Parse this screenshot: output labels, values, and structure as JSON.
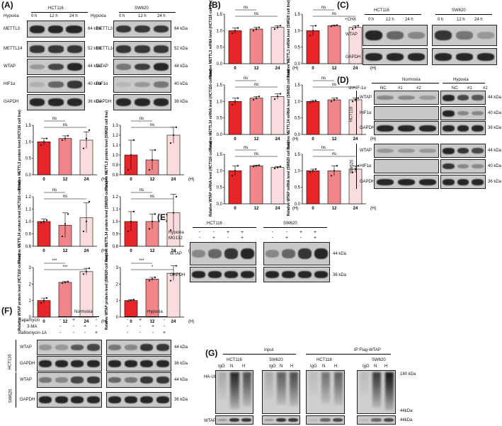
{
  "panels": {
    "A": "(A)",
    "B": "(B)",
    "C": "(C)",
    "D": "(D)",
    "E": "(E)",
    "F": "(F)",
    "G": "(G)"
  },
  "common": {
    "hypoxia": "Hypoxia",
    "h0": "0 h",
    "h12": "12 h",
    "h24": "24 h",
    "hct": "HCT116",
    "sw": "SW620",
    "ns": "ns",
    "unit": "(H)",
    "star1": "*",
    "star3": "***",
    "kda64": "64 kDa",
    "kda52": "52 kDa",
    "kda44": "44 kDa",
    "kda40": "40 kDa",
    "kda36": "36 kDa",
    "kda180": "180 kDa",
    "kda44b": "44kDa",
    "mettl3": "METTL3",
    "mettl14": "METTL14",
    "wtap": "WTAP",
    "hif": "HIF1α",
    "gapdh": "GAPDH"
  },
  "C": {
    "chx": "+CHX"
  },
  "D": {
    "sh": "shHIF-1α",
    "normoxia": "Normoxia",
    "hypoxiaLab": "Hypoxia",
    "nc": "NC",
    "s1": "#1",
    "s2": "#2"
  },
  "E": {
    "hyp": "Hypoxia",
    "mg": "MG132",
    "signs_hyp": [
      "-",
      "-",
      "+",
      "+",
      "-",
      "-",
      "+",
      "+"
    ],
    "signs_mg": [
      "-",
      "+",
      "-",
      "+",
      "-",
      "+",
      "-",
      "+"
    ]
  },
  "F": {
    "rapa": "Rapamycin",
    "ma": "3-MA",
    "baf": "Bafilomycin-1A",
    "normoxia": "Normoxia",
    "hypoxiaLab": "Hypoxia",
    "r_rapa": [
      "-",
      "+",
      "-",
      "-",
      "-",
      "+",
      "-",
      "-"
    ],
    "r_ma": [
      "-",
      "-",
      "+",
      "-",
      "-",
      "-",
      "+",
      "-"
    ],
    "r_baf": [
      "-",
      "-",
      "-",
      "+",
      "-",
      "-",
      "-",
      "+"
    ]
  },
  "G": {
    "input": "Input",
    "ip": "IP:Flag-WTAP",
    "haub": "HA-Ub",
    "igg": "IgG",
    "n": "N",
    "h": "H"
  },
  "chart_data": [
    {
      "id": "A-METTL3-HCT116",
      "type": "bar",
      "categories": [
        "0",
        "12",
        "24"
      ],
      "values": [
        1.0,
        1.1,
        1.05
      ],
      "err": [
        0.1,
        0.08,
        0.25
      ],
      "ylabel": "Relative METTL3 protein level (HCT116 cell line)",
      "ylim": [
        0,
        1.5
      ],
      "ticks": [
        "0.0",
        "0.5",
        "1.0",
        "1.5"
      ],
      "sig": [
        [
          "ns",
          0,
          1
        ],
        [
          "ns",
          0,
          2
        ]
      ],
      "pts": [
        [
          0.9,
          1.0,
          1.1
        ],
        [
          1.05,
          1.1,
          1.18
        ],
        [
          0.8,
          1.1,
          1.35
        ]
      ]
    },
    {
      "id": "A-METTL3-SW620",
      "type": "bar",
      "categories": [
        "0",
        "12",
        "24"
      ],
      "values": [
        1.0,
        0.95,
        1.2
      ],
      "err": [
        0.15,
        0.1,
        0.08
      ],
      "ylabel": "Relative METTL3 protein level (SW620 cell line)",
      "ylim": [
        0.8,
        1.3
      ],
      "ticks": [
        "0.8",
        "0.9",
        "1.0",
        "1.1",
        "1.2",
        "1.3"
      ],
      "sig": [
        [
          "ns",
          0,
          1
        ],
        [
          "ns",
          0,
          2
        ]
      ],
      "pts": [
        [
          0.85,
          1.0,
          1.15
        ],
        [
          0.85,
          0.95,
          1.05
        ],
        [
          1.12,
          1.2,
          1.28
        ]
      ]
    },
    {
      "id": "A-METTL14-HCT116",
      "type": "bar",
      "categories": [
        "0",
        "12",
        "24"
      ],
      "values": [
        1.0,
        0.97,
        1.03
      ],
      "err": [
        0.02,
        0.1,
        0.12
      ],
      "ylabel": "Relative METTL14 protein level (HCT116 cell line)",
      "ylim": [
        0.8,
        1.2
      ],
      "ticks": [
        "0.8",
        "0.9",
        "1.0",
        "1.1",
        "1.2"
      ],
      "sig": [
        [
          "ns",
          0,
          1
        ],
        [
          "ns",
          0,
          2
        ]
      ],
      "pts": [
        [
          0.99,
          1.0,
          1.01
        ],
        [
          0.88,
          0.98,
          1.06
        ],
        [
          0.92,
          1.0,
          1.16
        ]
      ]
    },
    {
      "id": "A-METTL14-SW620",
      "type": "bar",
      "categories": [
        "0",
        "12",
        "24"
      ],
      "values": [
        1.0,
        1.0,
        1.07
      ],
      "err": [
        0.08,
        0.06,
        0.15
      ],
      "ylabel": "Relative METTL14 protein level (SW620 cell line)",
      "ylim": [
        0.8,
        1.2
      ],
      "ticks": [
        "0.8",
        "0.9",
        "1.0",
        "1.1",
        "1.2"
      ],
      "sig": [
        [
          "ns",
          0,
          1
        ],
        [
          "ns",
          0,
          2
        ]
      ],
      "pts": [
        [
          0.92,
          1.0,
          1.08
        ],
        [
          0.94,
          1.0,
          1.06
        ],
        [
          0.93,
          1.07,
          1.2
        ]
      ]
    },
    {
      "id": "A-WTAP-HCT116",
      "type": "bar",
      "categories": [
        "0",
        "12",
        "24"
      ],
      "values": [
        1.0,
        2.1,
        2.75
      ],
      "err": [
        0.15,
        0.05,
        0.2
      ],
      "ylabel": "Relative WTAP protein level (HCT116 cell line)",
      "ylim": [
        0,
        3
      ],
      "ticks": [
        "0",
        "1",
        "2",
        "3"
      ],
      "sig": [
        [
          "***",
          0,
          1
        ],
        [
          "***",
          0,
          2
        ]
      ],
      "pts": [
        [
          0.85,
          1.0,
          1.15
        ],
        [
          2.05,
          2.1,
          2.15
        ],
        [
          2.6,
          2.75,
          2.95
        ]
      ]
    },
    {
      "id": "A-WTAP-SW620",
      "type": "bar",
      "categories": [
        "0",
        "12",
        "24"
      ],
      "values": [
        1.0,
        2.3,
        2.65
      ],
      "err": [
        0.05,
        0.1,
        0.45
      ],
      "ylabel": "Relative WTAP protein level (SW620 cell line)",
      "ylim": [
        0,
        3
      ],
      "ticks": [
        "0",
        "1",
        "2",
        "3"
      ],
      "sig": [
        [
          "***",
          0,
          1
        ],
        [
          "*",
          0,
          2
        ]
      ],
      "pts": [
        [
          0.95,
          1.0,
          1.05
        ],
        [
          2.2,
          2.3,
          2.4
        ],
        [
          2.2,
          2.6,
          3.1
        ]
      ]
    },
    {
      "id": "B-METTL3-HCT116",
      "type": "bar",
      "categories": [
        "0",
        "12",
        "24"
      ],
      "values": [
        1.0,
        1.05,
        1.1
      ],
      "err": [
        0.08,
        0.05,
        0.05
      ],
      "ylabel": "Relative METTL3 mRNA level (HCT116 cell line)",
      "ylim": [
        0,
        1.5
      ],
      "ticks": [
        "0.0",
        "0.5",
        "1.0",
        "1.5"
      ],
      "sig": [
        [
          "ns",
          0,
          1
        ],
        [
          "ns",
          0,
          2
        ]
      ],
      "pts": [
        [
          0.92,
          1.0,
          1.08
        ],
        [
          1.0,
          1.05,
          1.1
        ],
        [
          1.05,
          1.1,
          1.15
        ]
      ]
    },
    {
      "id": "B-METTL3-SW620",
      "type": "bar",
      "categories": [
        "0",
        "12",
        "24"
      ],
      "values": [
        1.0,
        1.15,
        1.1
      ],
      "err": [
        0.15,
        0.02,
        0.05
      ],
      "ylabel": "Relative METTL3 mRNA level (SW620 cell line)",
      "ylim": [
        0,
        1.5
      ],
      "ticks": [
        "0.0",
        "0.5",
        "1.0",
        "1.5"
      ],
      "sig": [
        [
          "ns",
          0,
          1
        ],
        [
          "ns",
          0,
          2
        ]
      ],
      "pts": [
        [
          0.85,
          1.0,
          1.15
        ],
        [
          1.13,
          1.15,
          1.17
        ],
        [
          1.05,
          1.1,
          1.15
        ]
      ]
    },
    {
      "id": "B-METTL14-HCT116",
      "type": "bar",
      "categories": [
        "0",
        "12",
        "24"
      ],
      "values": [
        1.0,
        1.1,
        1.15
      ],
      "err": [
        0.1,
        0.05,
        0.08
      ],
      "ylabel": "Relative METTL14 mRNA level (HCT116 cell line)",
      "ylim": [
        0,
        1.5
      ],
      "ticks": [
        "0.0",
        "0.5",
        "1.0",
        "1.5"
      ],
      "sig": [
        [
          "ns",
          0,
          1
        ],
        [
          "ns",
          0,
          2
        ]
      ],
      "pts": [
        [
          0.9,
          1.0,
          1.1
        ],
        [
          1.05,
          1.1,
          1.15
        ],
        [
          1.07,
          1.15,
          1.23
        ]
      ]
    },
    {
      "id": "B-METTL14-SW620",
      "type": "bar",
      "categories": [
        "0",
        "12",
        "24"
      ],
      "values": [
        1.0,
        1.05,
        1.05
      ],
      "err": [
        0.03,
        0.05,
        0.05
      ],
      "ylabel": "Relative METTL14 mRNA level (SW620 cell line)",
      "ylim": [
        0,
        1.5
      ],
      "ticks": [
        "0.0",
        "0.5",
        "1.0",
        "1.5"
      ],
      "sig": [
        [
          "ns",
          0,
          1
        ],
        [
          "ns",
          0,
          2
        ]
      ],
      "pts": [
        [
          0.97,
          1.0,
          1.03
        ],
        [
          1.0,
          1.05,
          1.1
        ],
        [
          1.0,
          1.05,
          1.1
        ]
      ]
    },
    {
      "id": "B-WTAP-HCT116",
      "type": "bar",
      "categories": [
        "0",
        "12",
        "24"
      ],
      "values": [
        1.0,
        1.15,
        1.1
      ],
      "err": [
        0.15,
        0.02,
        0.03
      ],
      "ylabel": "Relative WTAP mRNA level (HCT116 cell line)",
      "ylim": [
        0,
        1.5
      ],
      "ticks": [
        "0.0",
        "0.5",
        "1.0",
        "1.5"
      ],
      "sig": [
        [
          "ns",
          0,
          1
        ],
        [
          "ns",
          0,
          2
        ]
      ],
      "pts": [
        [
          0.85,
          1.0,
          1.15
        ],
        [
          1.13,
          1.15,
          1.17
        ],
        [
          1.07,
          1.1,
          1.13
        ]
      ]
    },
    {
      "id": "B-WTAP-SW620",
      "type": "bar",
      "categories": [
        "0",
        "12",
        "24"
      ],
      "values": [
        1.0,
        1.0,
        1.05
      ],
      "err": [
        0.05,
        0.15,
        0.1
      ],
      "ylabel": "Relative WTAP mRNA level (SW620 cell line)",
      "ylim": [
        0,
        1.5
      ],
      "ticks": [
        "0.0",
        "0.5",
        "1.0",
        "1.5"
      ],
      "sig": [
        [
          "ns",
          0,
          1
        ],
        [
          "ns",
          0,
          2
        ]
      ],
      "pts": [
        [
          0.95,
          1.0,
          1.05
        ],
        [
          0.85,
          1.0,
          1.15
        ],
        [
          0.95,
          1.05,
          1.15
        ]
      ]
    }
  ]
}
